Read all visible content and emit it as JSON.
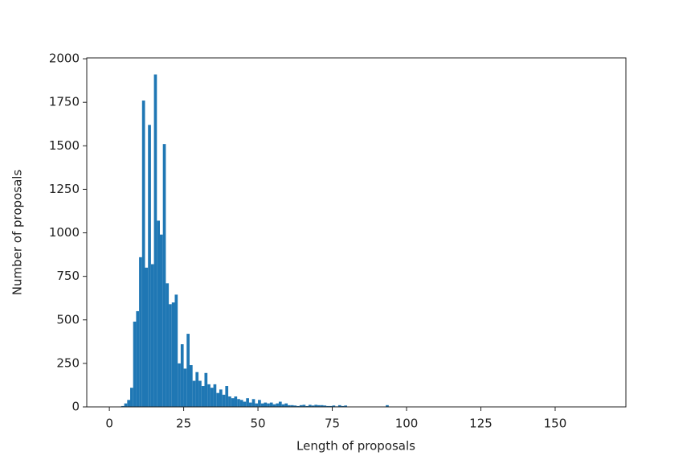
{
  "chart_data": {
    "type": "histogram",
    "x_label": "Length of proposals",
    "y_label": "Number of proposals",
    "color": "#1f77b4",
    "bins": [
      1,
      2,
      3,
      4,
      5,
      6,
      7,
      8,
      9,
      10,
      11,
      12,
      13,
      14,
      15,
      16,
      17,
      18,
      19,
      20,
      21,
      22,
      23,
      24,
      25,
      26,
      27,
      28,
      29,
      30,
      31,
      32,
      33,
      34,
      35,
      36,
      37,
      38,
      39,
      40,
      41,
      42,
      43,
      44,
      45,
      46,
      47,
      48,
      49,
      50,
      51,
      52,
      53,
      54,
      55,
      56,
      57,
      58,
      59,
      60,
      61,
      62,
      63,
      64,
      65,
      66,
      67,
      68,
      69,
      70,
      71,
      72,
      73,
      74,
      75,
      76,
      77,
      78,
      79,
      80,
      81,
      82,
      83,
      84,
      85,
      86,
      87,
      88,
      89,
      90,
      91,
      92,
      93,
      94,
      95,
      96,
      97,
      98,
      99,
      100
    ],
    "counts": [
      0,
      0,
      0,
      5,
      20,
      40,
      110,
      490,
      550,
      860,
      1760,
      800,
      1620,
      820,
      1910,
      1070,
      990,
      1510,
      710,
      590,
      600,
      645,
      250,
      360,
      220,
      420,
      240,
      150,
      200,
      150,
      120,
      195,
      130,
      110,
      130,
      80,
      100,
      70,
      120,
      60,
      50,
      60,
      45,
      40,
      30,
      50,
      25,
      45,
      20,
      40,
      20,
      25,
      20,
      25,
      15,
      20,
      30,
      15,
      20,
      10,
      10,
      8,
      5,
      10,
      12,
      5,
      12,
      8,
      12,
      10,
      10,
      8,
      5,
      5,
      8,
      3,
      10,
      5,
      8,
      0,
      0,
      0,
      0,
      0,
      0,
      0,
      0,
      0,
      0,
      0,
      0,
      0,
      10,
      0,
      0,
      0,
      0,
      0,
      0
    ],
    "xlim": [
      -7.6,
      173.8
    ],
    "ylim": [
      0,
      2005
    ],
    "xticks": [
      0,
      25,
      50,
      75,
      100,
      125,
      150
    ],
    "yticks": [
      0,
      250,
      500,
      750,
      1000,
      1250,
      1500,
      1750,
      2000
    ]
  }
}
